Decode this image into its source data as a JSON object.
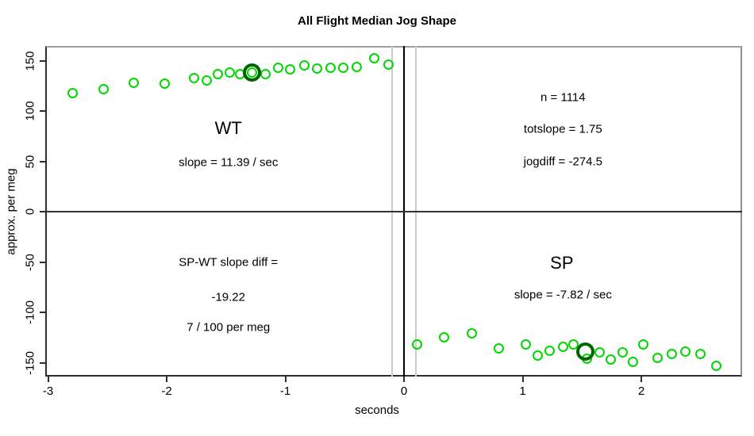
{
  "chart_data": {
    "type": "scatter",
    "title": "All Flight Median Jog Shape",
    "xlabel": "seconds",
    "ylabel": "approx. per meg",
    "xlim": [
      -3.02,
      2.85
    ],
    "ylim": [
      -164,
      164.5
    ],
    "x_ticks": [
      -3,
      -2,
      -1,
      0,
      1,
      2
    ],
    "y_ticks": [
      -150,
      -100,
      -50,
      0,
      50,
      100,
      150
    ],
    "grid": false,
    "legend": "none",
    "point_color": "#00d900",
    "highlight_color": "#006400",
    "series": [
      {
        "name": "WT",
        "points": [
          [
            -2.79,
            118
          ],
          [
            -2.53,
            122
          ],
          [
            -2.28,
            128
          ],
          [
            -2.02,
            127
          ],
          [
            -1.77,
            133
          ],
          [
            -1.66,
            130
          ],
          [
            -1.57,
            137
          ],
          [
            -1.47,
            138
          ],
          [
            -1.38,
            137
          ],
          [
            -1.28,
            138
          ],
          [
            -1.17,
            137
          ],
          [
            -1.06,
            143
          ],
          [
            -0.96,
            141
          ],
          [
            -0.84,
            145
          ],
          [
            -0.73,
            142
          ],
          [
            -0.62,
            143
          ],
          [
            -0.51,
            143
          ],
          [
            -0.4,
            144
          ],
          [
            -0.25,
            152
          ],
          [
            -0.13,
            146
          ]
        ]
      },
      {
        "name": "SP",
        "points": [
          [
            0.11,
            -132
          ],
          [
            0.34,
            -125
          ],
          [
            0.57,
            -121
          ],
          [
            0.8,
            -136
          ],
          [
            1.03,
            -132
          ],
          [
            1.13,
            -143
          ],
          [
            1.23,
            -138
          ],
          [
            1.34,
            -134
          ],
          [
            1.43,
            -132
          ],
          [
            1.54,
            -146
          ],
          [
            1.65,
            -140
          ],
          [
            1.74,
            -147
          ],
          [
            1.84,
            -140
          ],
          [
            1.93,
            -149
          ],
          [
            2.02,
            -132
          ],
          [
            2.14,
            -145
          ],
          [
            2.26,
            -141
          ],
          [
            2.37,
            -139
          ],
          [
            2.5,
            -141
          ],
          [
            2.63,
            -153
          ]
        ]
      }
    ],
    "highlighted_points": [
      {
        "x": -1.28,
        "y": 138
      },
      {
        "x": 1.53,
        "y": -139
      }
    ],
    "reference_lines": {
      "vertical": [
        {
          "x": -0.1,
          "color": "#cccccc",
          "width": 2
        },
        {
          "x": 0.0,
          "color": "#000000",
          "width": 2
        },
        {
          "x": 0.1,
          "color": "#cccccc",
          "width": 2
        }
      ],
      "horizontal": [
        {
          "y": 0,
          "color": "#333333",
          "width": 2
        }
      ]
    },
    "annotations": [
      {
        "text": "WT",
        "x": -1.48,
        "y": 83,
        "size": "large"
      },
      {
        "text": "slope = 11.39 / sec",
        "x": -1.48,
        "y": 49,
        "size": "normal"
      },
      {
        "text": "n = 1114",
        "x": 1.34,
        "y": 113,
        "size": "normal"
      },
      {
        "text": "totslope = 1.75",
        "x": 1.34,
        "y": 82,
        "size": "normal"
      },
      {
        "text": "jogdiff = -274.5",
        "x": 1.34,
        "y": 50,
        "size": "normal"
      },
      {
        "text": "SP-WT slope diff =",
        "x": -1.48,
        "y": -50,
        "size": "normal"
      },
      {
        "text": "-19.22",
        "x": -1.48,
        "y": -85,
        "size": "normal"
      },
      {
        "text": "7 / 100 per meg",
        "x": -1.48,
        "y": -115,
        "size": "normal"
      },
      {
        "text": "SP",
        "x": 1.33,
        "y": -51,
        "size": "large"
      },
      {
        "text": "slope = -7.82 / sec",
        "x": 1.34,
        "y": -83,
        "size": "normal"
      }
    ]
  }
}
